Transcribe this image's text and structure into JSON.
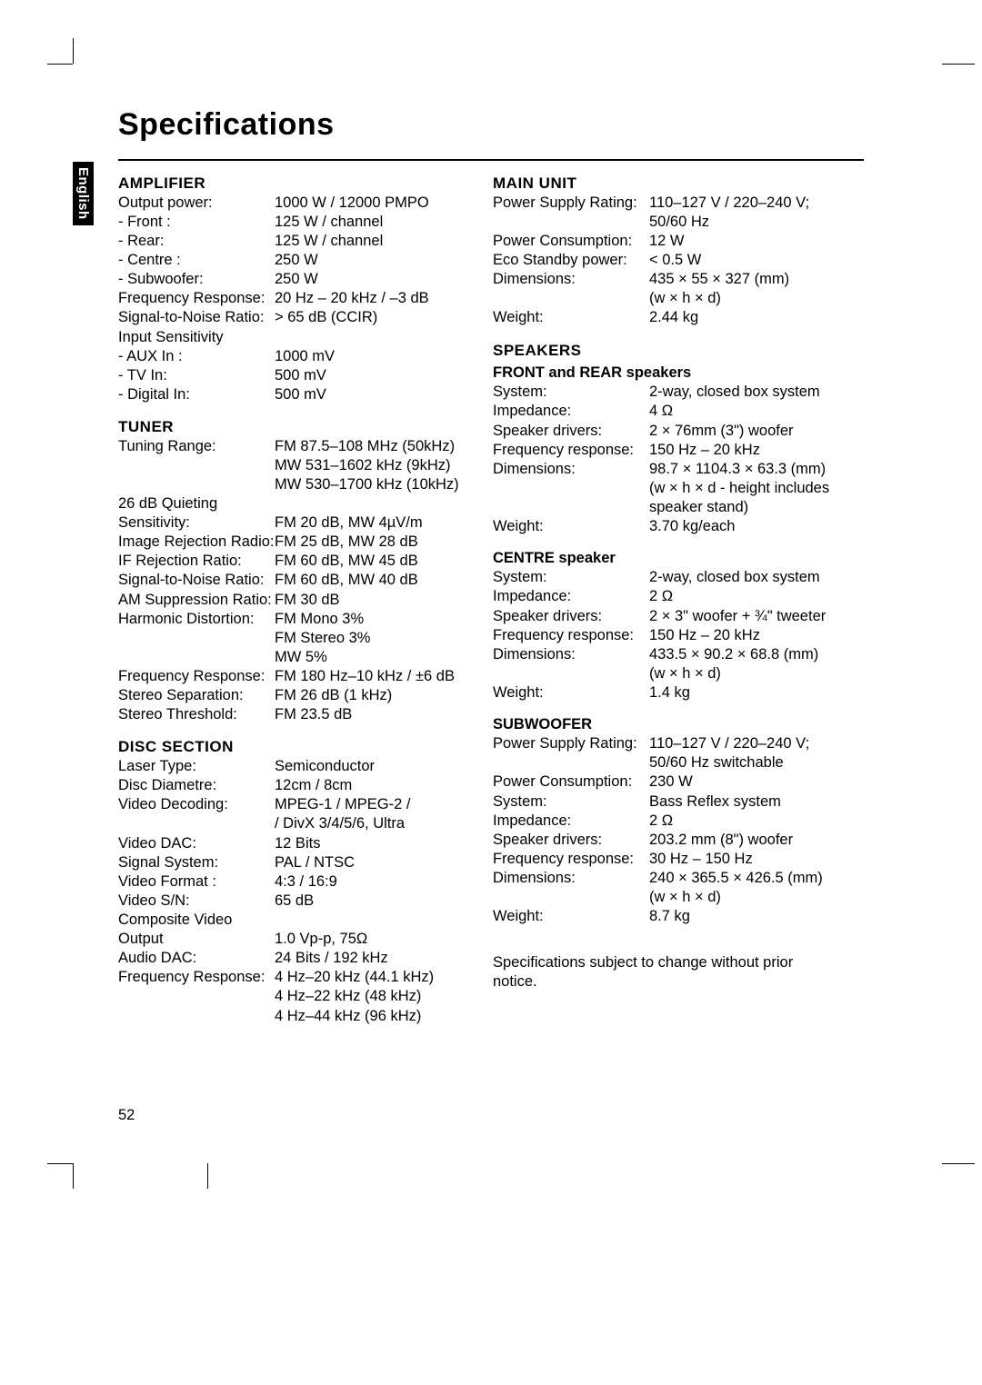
{
  "page": {
    "title": "Specifications",
    "language_tab": "English",
    "page_number": "52",
    "footnote": "Specifications subject to change without prior notice."
  },
  "left": {
    "amplifier": {
      "head": "AMPLIFIER",
      "rows": [
        {
          "l": "Output power:",
          "v": "1000 W / 12000 PMPO"
        },
        {
          "l": "- Front :",
          "v": "125 W / channel"
        },
        {
          "l": "- Rear:",
          "v": "125 W / channel"
        },
        {
          "l": "- Centre :",
          "v": "250 W"
        },
        {
          "l": "- Subwoofer:",
          "v": "250 W"
        },
        {
          "l": "Frequency Response:",
          "v": "20 Hz – 20 kHz / –3 dB"
        },
        {
          "l": "Signal-to-Noise Ratio:",
          "v": "> 65 dB (CCIR)"
        },
        {
          "l": "Input Sensitivity",
          "v": ""
        },
        {
          "l": "- AUX In :",
          "v": "1000 mV"
        },
        {
          "l": "- TV In:",
          "v": "500 mV"
        },
        {
          "l": "- Digital In:",
          "v": "500 mV"
        }
      ]
    },
    "tuner": {
      "head": "TUNER",
      "rows": [
        {
          "l": "Tuning Range:",
          "v": "FM 87.5–108 MHz (50kHz)"
        },
        {
          "l": "",
          "v": "MW 531–1602 kHz (9kHz)"
        },
        {
          "l": "",
          "v": "MW 530–1700 kHz (10kHz)"
        },
        {
          "l": "26 dB Quieting",
          "v": ""
        },
        {
          "l": "Sensitivity:",
          "v": "FM 20 dB, MW 4µV/m"
        },
        {
          "l": "Image Rejection Radio:",
          "v": "FM 25 dB, MW 28 dB"
        },
        {
          "l": "IF Rejection Ratio:",
          "v": "FM 60 dB, MW 45 dB"
        },
        {
          "l": "Signal-to-Noise Ratio:",
          "v": "FM 60 dB, MW 40 dB"
        },
        {
          "l": "AM Suppression Ratio:",
          "v": "FM 30 dB"
        },
        {
          "l": "Harmonic Distortion:",
          "v": "FM Mono 3%"
        },
        {
          "l": "",
          "v": "FM Stereo 3%"
        },
        {
          "l": "",
          "v": "MW 5%"
        },
        {
          "l": "Frequency Response:",
          "v": "FM 180 Hz–10 kHz / ±6 dB"
        },
        {
          "l": "Stereo Separation:",
          "v": "FM 26 dB (1 kHz)"
        },
        {
          "l": "Stereo Threshold:",
          "v": "FM 23.5 dB"
        }
      ]
    },
    "disc": {
      "head": "DISC SECTION",
      "rows": [
        {
          "l": "Laser Type:",
          "v": "Semiconductor"
        },
        {
          "l": "Disc Diametre:",
          "v": "12cm / 8cm"
        },
        {
          "l": "Video Decoding:",
          "v": "MPEG-1 / MPEG-2 /"
        },
        {
          "l": "",
          "v": "/ DivX 3/4/5/6, Ultra"
        },
        {
          "l": "Video DAC:",
          "v": "12 Bits"
        },
        {
          "l": "Signal System:",
          "v": "PAL / NTSC"
        },
        {
          "l": "Video Format :",
          "v": "4:3 / 16:9"
        },
        {
          "l": "Video S/N:",
          "v": "65 dB"
        },
        {
          "l": "Composite Video",
          "v": ""
        },
        {
          "l": "Output",
          "v": "1.0 Vp-p, 75Ω"
        },
        {
          "l": "Audio DAC:",
          "v": "24 Bits / 192 kHz"
        },
        {
          "l": "Frequency Response:",
          "v": "4 Hz–20 kHz (44.1 kHz)"
        },
        {
          "l": "",
          "v": "4 Hz–22 kHz (48 kHz)"
        },
        {
          "l": "",
          "v": "4 Hz–44 kHz (96 kHz)"
        }
      ]
    }
  },
  "right": {
    "main_unit": {
      "head": "MAIN UNIT",
      "rows": [
        {
          "l": "Power Supply Rating:",
          "v": "110–127 V / 220–240 V;"
        },
        {
          "l": "",
          "v": "50/60 Hz"
        },
        {
          "l": "Power Consumption:",
          "v": "12 W"
        },
        {
          "l": "Eco Standby power:",
          "v": "< 0.5 W"
        },
        {
          "l": "Dimensions:",
          "v": "435 × 55 × 327 (mm)"
        },
        {
          "l": "",
          "v": "(w × h × d)"
        },
        {
          "l": "Weight:",
          "v": "2.44 kg"
        }
      ]
    },
    "speakers_head": "SPEAKERS",
    "front_rear": {
      "subhead": "FRONT and REAR speakers",
      "rows": [
        {
          "l": "System:",
          "v": "2-way, closed box system"
        },
        {
          "l": "Impedance:",
          "v": "4 Ω"
        },
        {
          "l": "Speaker drivers:",
          "v": "2 × 76mm (3\") woofer"
        },
        {
          "l": "Frequency response:",
          "v": "150 Hz – 20 kHz"
        },
        {
          "l": "Dimensions:",
          "v": "98.7 × 1104.3 × 63.3 (mm)"
        },
        {
          "l": "",
          "v": "(w × h × d - height includes"
        },
        {
          "l": "",
          "v": "speaker stand)"
        },
        {
          "l": "Weight:",
          "v": "3.70 kg/each"
        }
      ]
    },
    "centre": {
      "subhead": "CENTRE speaker",
      "rows": [
        {
          "l": "System:",
          "v": "2-way, closed box system"
        },
        {
          "l": "Impedance:",
          "v": "2 Ω"
        },
        {
          "l": "Speaker drivers:",
          "v": "2 × 3\" woofer + ¾\" tweeter"
        },
        {
          "l": "Frequency response:",
          "v": "150 Hz – 20 kHz"
        },
        {
          "l": "Dimensions:",
          "v": "433.5 × 90.2 × 68.8 (mm)"
        },
        {
          "l": "",
          "v": "(w × h × d)"
        },
        {
          "l": "Weight:",
          "v": "1.4 kg"
        }
      ]
    },
    "subwoofer": {
      "subhead": "SUBWOOFER",
      "rows": [
        {
          "l": "Power Supply Rating:",
          "v": "110–127 V / 220–240 V;"
        },
        {
          "l": "",
          "v": "50/60 Hz switchable"
        },
        {
          "l": "Power Consumption:",
          "v": "230 W"
        },
        {
          "l": "System:",
          "v": "Bass Reflex system"
        },
        {
          "l": "Impedance:",
          "v": "2 Ω"
        },
        {
          "l": "Speaker drivers:",
          "v": "203.2 mm (8\") woofer"
        },
        {
          "l": "Frequency response:",
          "v": "30 Hz – 150 Hz"
        },
        {
          "l": "Dimensions:",
          "v": "240 × 365.5 × 426.5 (mm)"
        },
        {
          "l": "",
          "v": "(w × h × d)"
        },
        {
          "l": "Weight:",
          "v": "8.7 kg"
        }
      ]
    }
  }
}
